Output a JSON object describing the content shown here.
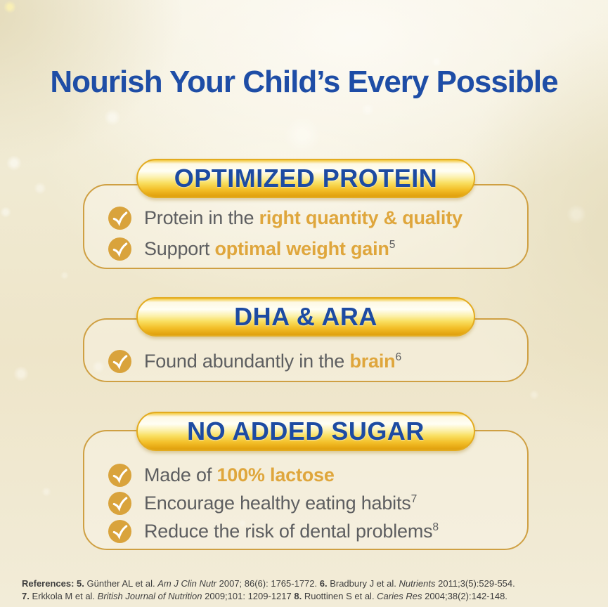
{
  "page": {
    "title": "Nourish Your Child’s Every Possible"
  },
  "colors": {
    "title_blue": "#1e4da6",
    "banner_blue": "#1d4ba2",
    "gold_accent": "#dfa63c",
    "body_gray": "#5d5e60",
    "card_border_gold": "#cfa043",
    "check_circle_gold": "#d9a33c",
    "pill_gold_dark": "#dfa010",
    "background_cream": "#eee5c9"
  },
  "sections": [
    {
      "banner": "OPTIMIZED PROTEIN",
      "items": [
        {
          "segments": [
            {
              "t": "Protein in the ",
              "s": "p"
            },
            {
              "t": "right quantity & quality",
              "s": "g"
            }
          ]
        },
        {
          "segments": [
            {
              "t": "Support ",
              "s": "p"
            },
            {
              "t": "optimal weight gain",
              "s": "g"
            },
            {
              "t": "5",
              "s": "sup"
            }
          ]
        }
      ]
    },
    {
      "banner": "DHA & ARA",
      "items": [
        {
          "segments": [
            {
              "t": "Found abundantly in the ",
              "s": "p"
            },
            {
              "t": "brain",
              "s": "g"
            },
            {
              "t": "6",
              "s": "sup"
            }
          ]
        }
      ]
    },
    {
      "banner": "NO ADDED SUGAR",
      "items": [
        {
          "segments": [
            {
              "t": "Made of ",
              "s": "p"
            },
            {
              "t": "100% lactose",
              "s": "g"
            }
          ]
        },
        {
          "segments": [
            {
              "t": "Encourage healthy eating habits",
              "s": "p"
            },
            {
              "t": "7",
              "s": "sup"
            }
          ]
        },
        {
          "segments": [
            {
              "t": "Reduce the risk of dental problems",
              "s": "p"
            },
            {
              "t": "8",
              "s": "sup"
            }
          ]
        }
      ]
    }
  ],
  "references": {
    "lines": [
      {
        "segments": [
          {
            "t": "References: ",
            "s": "b"
          },
          {
            "t": "5. ",
            "s": "b"
          },
          {
            "t": "Günther AL et al. ",
            "s": "p"
          },
          {
            "t": "Am J Clin Nutr ",
            "s": "i"
          },
          {
            "t": "2007; 86(6): 1765-1772. ",
            "s": "p"
          },
          {
            "t": "6. ",
            "s": "b"
          },
          {
            "t": "Bradbury J et al. ",
            "s": "p"
          },
          {
            "t": "Nutrients ",
            "s": "i"
          },
          {
            "t": "2011;3(5):529-554.",
            "s": "p"
          }
        ]
      },
      {
        "segments": [
          {
            "t": "7. ",
            "s": "b"
          },
          {
            "t": "Erkkola M et al. ",
            "s": "p"
          },
          {
            "t": "British Journal of Nutrition ",
            "s": "i"
          },
          {
            "t": "2009;101: 1209-1217 ",
            "s": "p"
          },
          {
            "t": "8. ",
            "s": "b"
          },
          {
            "t": "Ruottinen S et al. ",
            "s": "p"
          },
          {
            "t": "Caries Res ",
            "s": "i"
          },
          {
            "t": "2004;38(2):142-148.",
            "s": "p"
          }
        ]
      }
    ]
  }
}
